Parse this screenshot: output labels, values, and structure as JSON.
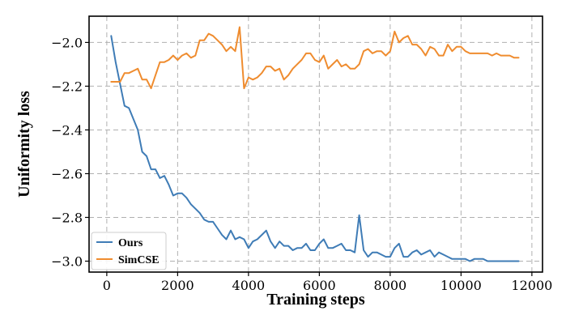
{
  "chart_data": {
    "type": "line",
    "title": "",
    "xlabel": "Training steps",
    "ylabel": "Uniformity loss",
    "xlim": [
      -500,
      12300
    ],
    "ylim": [
      -3.05,
      -1.88
    ],
    "xticks": [
      0,
      2000,
      4000,
      6000,
      8000,
      10000,
      12000
    ],
    "xtick_labels": [
      "0",
      "2000",
      "4000",
      "6000",
      "8000",
      "10000",
      "12000"
    ],
    "yticks": [
      -3.0,
      -2.8,
      -2.6,
      -2.4,
      -2.2,
      -2.0
    ],
    "ytick_labels": [
      "−3.0",
      "−2.8",
      "−2.6",
      "−2.4",
      "−2.2",
      "−2.0"
    ],
    "grid": true,
    "legend_position": "lower-left",
    "series": [
      {
        "name": "Ours",
        "color": "#3f7cb6",
        "x": [
          125,
          250,
          375,
          500,
          625,
          750,
          875,
          1000,
          1125,
          1250,
          1375,
          1500,
          1625,
          1750,
          1875,
          2000,
          2125,
          2250,
          2375,
          2500,
          2625,
          2750,
          2875,
          3000,
          3125,
          3250,
          3375,
          3500,
          3625,
          3750,
          3875,
          4000,
          4125,
          4250,
          4375,
          4500,
          4625,
          4750,
          4875,
          5000,
          5125,
          5250,
          5375,
          5500,
          5625,
          5750,
          5875,
          6000,
          6125,
          6250,
          6375,
          6500,
          6625,
          6750,
          6875,
          7000,
          7125,
          7250,
          7375,
          7500,
          7625,
          7750,
          7875,
          8000,
          8125,
          8250,
          8375,
          8500,
          8625,
          8750,
          8875,
          9000,
          9125,
          9250,
          9375,
          9500,
          9625,
          9750,
          9875,
          10000,
          10125,
          10250,
          10375,
          10500,
          10625,
          10750,
          10875,
          11000,
          11125,
          11250,
          11375,
          11500,
          11625
        ],
        "y": [
          -1.97,
          -2.09,
          -2.19,
          -2.29,
          -2.3,
          -2.35,
          -2.4,
          -2.5,
          -2.52,
          -2.58,
          -2.58,
          -2.62,
          -2.61,
          -2.65,
          -2.7,
          -2.69,
          -2.69,
          -2.71,
          -2.74,
          -2.76,
          -2.78,
          -2.81,
          -2.82,
          -2.82,
          -2.85,
          -2.88,
          -2.9,
          -2.86,
          -2.9,
          -2.89,
          -2.9,
          -2.94,
          -2.91,
          -2.9,
          -2.88,
          -2.86,
          -2.91,
          -2.94,
          -2.91,
          -2.93,
          -2.93,
          -2.95,
          -2.94,
          -2.94,
          -2.92,
          -2.95,
          -2.95,
          -2.92,
          -2.9,
          -2.94,
          -2.94,
          -2.93,
          -2.92,
          -2.95,
          -2.95,
          -2.96,
          -2.79,
          -2.95,
          -2.98,
          -2.96,
          -2.96,
          -2.97,
          -2.98,
          -2.98,
          -2.94,
          -2.92,
          -2.98,
          -2.98,
          -2.96,
          -2.95,
          -2.97,
          -2.96,
          -2.95,
          -2.98,
          -2.96,
          -2.97,
          -2.98,
          -2.99,
          -2.99,
          -2.99,
          -2.99,
          -3.0,
          -2.99,
          -2.99,
          -2.99,
          -3.0,
          -3.0,
          -3.0,
          -3.0,
          -3.0,
          -3.0,
          -3.0,
          -3.0
        ]
      },
      {
        "name": "SimCSE",
        "color": "#ef8c2f",
        "x": [
          125,
          250,
          375,
          500,
          625,
          750,
          875,
          1000,
          1125,
          1250,
          1375,
          1500,
          1625,
          1750,
          1875,
          2000,
          2125,
          2250,
          2375,
          2500,
          2625,
          2750,
          2875,
          3000,
          3125,
          3250,
          3375,
          3500,
          3625,
          3750,
          3875,
          4000,
          4125,
          4250,
          4375,
          4500,
          4625,
          4750,
          4875,
          5000,
          5125,
          5250,
          5375,
          5500,
          5625,
          5750,
          5875,
          6000,
          6125,
          6250,
          6375,
          6500,
          6625,
          6750,
          6875,
          7000,
          7125,
          7250,
          7375,
          7500,
          7625,
          7750,
          7875,
          8000,
          8125,
          8250,
          8375,
          8500,
          8625,
          8750,
          8875,
          9000,
          9125,
          9250,
          9375,
          9500,
          9625,
          9750,
          9875,
          10000,
          10125,
          10250,
          10375,
          10500,
          10625,
          10750,
          10875,
          11000,
          11125,
          11250,
          11375,
          11500,
          11625
        ],
        "y": [
          -2.18,
          -2.18,
          -2.18,
          -2.14,
          -2.14,
          -2.13,
          -2.12,
          -2.17,
          -2.17,
          -2.21,
          -2.15,
          -2.09,
          -2.09,
          -2.08,
          -2.06,
          -2.08,
          -2.06,
          -2.05,
          -2.07,
          -2.06,
          -1.99,
          -1.99,
          -1.96,
          -1.97,
          -1.99,
          -2.01,
          -2.04,
          -2.02,
          -2.04,
          -1.93,
          -2.21,
          -2.16,
          -2.17,
          -2.16,
          -2.14,
          -2.11,
          -2.11,
          -2.13,
          -2.12,
          -2.17,
          -2.15,
          -2.12,
          -2.1,
          -2.08,
          -2.05,
          -2.05,
          -2.08,
          -2.09,
          -2.06,
          -2.12,
          -2.1,
          -2.08,
          -2.11,
          -2.1,
          -2.12,
          -2.12,
          -2.1,
          -2.04,
          -2.03,
          -2.05,
          -2.04,
          -2.04,
          -2.06,
          -2.04,
          -1.95,
          -2.0,
          -1.98,
          -1.97,
          -2.01,
          -2.01,
          -2.03,
          -2.06,
          -2.02,
          -2.03,
          -2.06,
          -2.06,
          -2.01,
          -2.04,
          -2.02,
          -2.02,
          -2.04,
          -2.05,
          -2.05,
          -2.05,
          -2.05,
          -2.05,
          -2.06,
          -2.05,
          -2.06,
          -2.06,
          -2.06,
          -2.07,
          -2.07
        ]
      }
    ]
  }
}
